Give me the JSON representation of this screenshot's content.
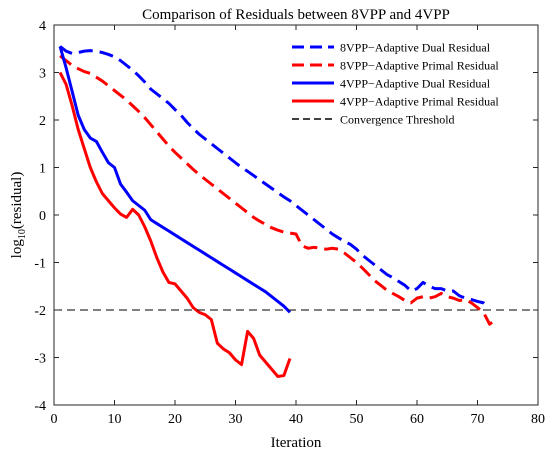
{
  "chart_data": {
    "type": "line",
    "title": "Comparison of Residuals between 8VPP and 4VPP",
    "xlabel": "Iteration",
    "ylabel_base": "log",
    "ylabel_sub": "10",
    "ylabel_rest": "(residual)",
    "xlim": [
      0,
      80
    ],
    "ylim": [
      -4,
      4
    ],
    "xticks": [
      0,
      10,
      20,
      30,
      40,
      50,
      60,
      70,
      80
    ],
    "yticks": [
      -4,
      -3,
      -2,
      -1,
      0,
      1,
      2,
      3,
      4
    ],
    "grid": false,
    "legend_position": "top-right",
    "series": [
      {
        "name": "8VPP−Adaptive Dual Residual",
        "color": "#0000ff",
        "dash": "dashed",
        "x": [
          1,
          2,
          3,
          4,
          5,
          6,
          7,
          8,
          9,
          10,
          11,
          12,
          13,
          14,
          15,
          16,
          17,
          18,
          19,
          20,
          21,
          22,
          23,
          24,
          25,
          26,
          27,
          28,
          29,
          30,
          31,
          32,
          33,
          34,
          35,
          36,
          37,
          38,
          39,
          40,
          41,
          42,
          43,
          44,
          45,
          46,
          47,
          48,
          49,
          50,
          51,
          52,
          53,
          54,
          55,
          56,
          57,
          58,
          59,
          60,
          61,
          62,
          63,
          64,
          65,
          66,
          67,
          68,
          69,
          70,
          71,
          72
        ],
        "y": [
          3.55,
          3.45,
          3.4,
          3.42,
          3.45,
          3.46,
          3.45,
          3.42,
          3.38,
          3.33,
          3.25,
          3.15,
          3.05,
          2.93,
          2.8,
          2.65,
          2.55,
          2.45,
          2.35,
          2.22,
          2.1,
          1.95,
          1.82,
          1.7,
          1.6,
          1.5,
          1.4,
          1.3,
          1.2,
          1.1,
          1.0,
          0.92,
          0.83,
          0.74,
          0.65,
          0.56,
          0.47,
          0.38,
          0.3,
          0.2,
          0.1,
          0.0,
          -0.1,
          -0.2,
          -0.3,
          -0.4,
          -0.48,
          -0.55,
          -0.62,
          -0.72,
          -0.85,
          -0.95,
          -1.05,
          -1.15,
          -1.25,
          -1.32,
          -1.4,
          -1.48,
          -1.6,
          -1.55,
          -1.42,
          -1.5,
          -1.55,
          -1.55,
          -1.6,
          -1.6,
          -1.7,
          -1.75,
          -1.78,
          -1.82,
          -1.85,
          -1.95
        ]
      },
      {
        "name": "8VPP−Adaptive Primal Residual",
        "color": "#ff0000",
        "dash": "dashed",
        "x": [
          1,
          2,
          3,
          4,
          5,
          6,
          7,
          8,
          9,
          10,
          11,
          12,
          13,
          14,
          15,
          16,
          17,
          18,
          19,
          20,
          21,
          22,
          23,
          24,
          25,
          26,
          27,
          28,
          29,
          30,
          31,
          32,
          33,
          34,
          35,
          36,
          37,
          38,
          39,
          40,
          41,
          42,
          43,
          44,
          45,
          46,
          47,
          48,
          49,
          50,
          51,
          52,
          53,
          54,
          55,
          56,
          57,
          58,
          59,
          60,
          61,
          62,
          63,
          64,
          65,
          66,
          67,
          68,
          69,
          70,
          71,
          72,
          73
        ],
        "y": [
          3.35,
          3.25,
          3.15,
          3.08,
          3.02,
          2.98,
          2.9,
          2.82,
          2.72,
          2.62,
          2.52,
          2.42,
          2.3,
          2.18,
          2.05,
          1.9,
          1.75,
          1.6,
          1.45,
          1.32,
          1.2,
          1.08,
          0.96,
          0.85,
          0.75,
          0.65,
          0.55,
          0.45,
          0.35,
          0.25,
          0.15,
          0.05,
          -0.05,
          -0.13,
          -0.2,
          -0.27,
          -0.32,
          -0.36,
          -0.38,
          -0.4,
          -0.65,
          -0.7,
          -0.68,
          -0.7,
          -0.72,
          -0.7,
          -0.72,
          -0.8,
          -0.9,
          -1.0,
          -1.12,
          -1.25,
          -1.38,
          -1.48,
          -1.58,
          -1.65,
          -1.72,
          -1.8,
          -1.85,
          -1.75,
          -1.72,
          -1.75,
          -1.72,
          -1.65,
          -1.72,
          -1.75,
          -1.8,
          -1.78,
          -1.85,
          -1.95,
          -2.05,
          -2.3,
          -2.2
        ]
      },
      {
        "name": "4VPP−Adaptive Dual Residual",
        "color": "#0000ff",
        "dash": "solid",
        "x": [
          1,
          2,
          3,
          4,
          5,
          6,
          7,
          8,
          9,
          10,
          11,
          12,
          13,
          14,
          15,
          16,
          17,
          18,
          19,
          20,
          21,
          22,
          23,
          24,
          25,
          26,
          27,
          28,
          29,
          30,
          31,
          32,
          33,
          34,
          35,
          36,
          37,
          38,
          39
        ],
        "y": [
          3.55,
          3.1,
          2.6,
          2.1,
          1.8,
          1.62,
          1.55,
          1.32,
          1.1,
          1.0,
          0.65,
          0.48,
          0.3,
          0.2,
          0.1,
          -0.1,
          -0.18,
          -0.26,
          -0.34,
          -0.42,
          -0.5,
          -0.58,
          -0.66,
          -0.74,
          -0.82,
          -0.9,
          -0.98,
          -1.06,
          -1.14,
          -1.22,
          -1.3,
          -1.38,
          -1.46,
          -1.54,
          -1.62,
          -1.72,
          -1.82,
          -1.92,
          -2.05
        ]
      },
      {
        "name": "4VPP−Adaptive Primal Residual",
        "color": "#ff0000",
        "dash": "solid",
        "x": [
          1,
          2,
          3,
          4,
          5,
          6,
          7,
          8,
          9,
          10,
          11,
          12,
          13,
          14,
          15,
          16,
          17,
          18,
          19,
          20,
          21,
          22,
          23,
          24,
          25,
          26,
          27,
          28,
          29,
          30,
          31,
          32,
          33,
          34,
          35,
          36,
          37,
          38,
          39
        ],
        "y": [
          3.0,
          2.75,
          2.3,
          1.8,
          1.4,
          1.0,
          0.7,
          0.45,
          0.3,
          0.15,
          0.02,
          -0.05,
          0.12,
          0.0,
          -0.25,
          -0.55,
          -0.9,
          -1.2,
          -1.42,
          -1.45,
          -1.6,
          -1.75,
          -1.95,
          -2.05,
          -2.1,
          -2.2,
          -2.7,
          -2.82,
          -2.9,
          -3.05,
          -3.15,
          -2.45,
          -2.6,
          -2.95,
          -3.1,
          -3.25,
          -3.4,
          -3.38,
          -3.02
        ]
      },
      {
        "name": "Convergence Threshold",
        "color": "#000000",
        "dash": "dashed",
        "x": [
          0,
          80
        ],
        "y": [
          -2,
          -2
        ]
      }
    ]
  }
}
